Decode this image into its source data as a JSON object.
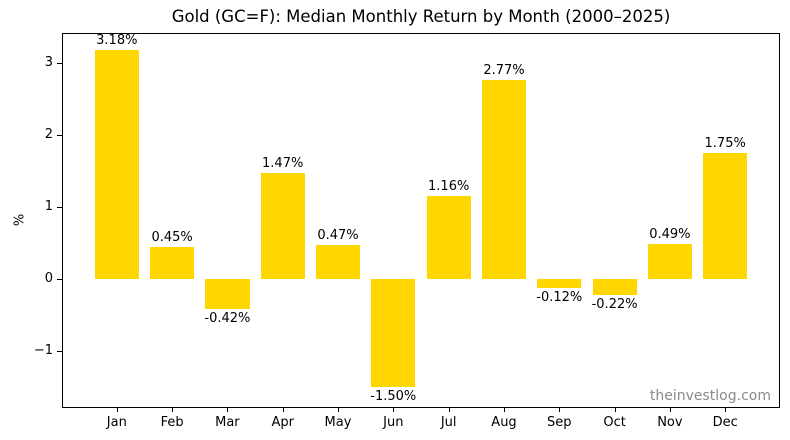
{
  "watermark": "theinvestlog.com",
  "chart_data": {
    "type": "bar",
    "title": "Gold (GC=F): Median Monthly Return by Month (2000–2025)",
    "xlabel": "",
    "ylabel": "%",
    "categories": [
      "Jan",
      "Feb",
      "Mar",
      "Apr",
      "May",
      "Jun",
      "Jul",
      "Aug",
      "Sep",
      "Oct",
      "Nov",
      "Dec"
    ],
    "values": [
      3.18,
      0.45,
      -0.42,
      1.47,
      0.47,
      -1.5,
      1.16,
      2.77,
      -0.12,
      -0.22,
      0.49,
      1.75
    ],
    "value_labels": [
      "3.18%",
      "0.45%",
      "-0.42%",
      "1.47%",
      "0.47%",
      "-1.50%",
      "1.16%",
      "2.77%",
      "-0.12%",
      "-0.22%",
      "0.49%",
      "1.75%"
    ],
    "unit": "%",
    "ylim": [
      -1.79,
      3.42
    ],
    "yticks": [
      3,
      2,
      1,
      0,
      -1
    ],
    "ytick_labels": [
      "3",
      "2",
      "1",
      "0",
      "−1"
    ],
    "bar_color": "#FFD700",
    "bar_width_fraction": 0.8,
    "grid": false,
    "legend": null,
    "annotation": "theinvestlog.com"
  }
}
